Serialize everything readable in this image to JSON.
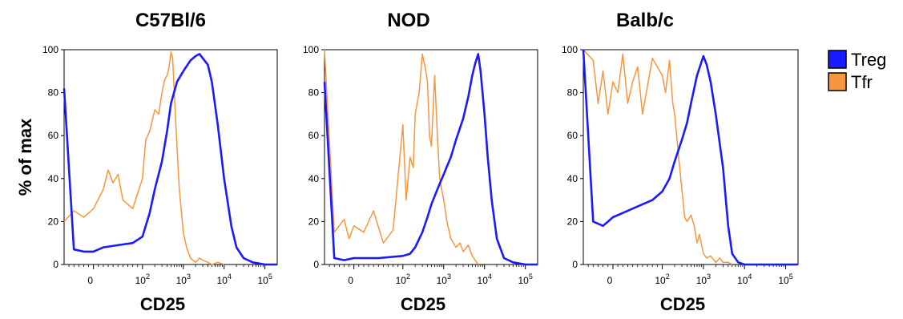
{
  "figure": {
    "ylabel": "% of max",
    "legend": {
      "placement": "right",
      "entries": [
        {
          "name": "Treg",
          "color": "#1a1aff"
        },
        {
          "name": "Tfr",
          "color": "#f7963c"
        }
      ]
    }
  },
  "chart_data": [
    {
      "type": "line",
      "title": "C57Bl/6",
      "xlabel": "CD25",
      "ylabel": "% of max",
      "x_scale": "biexponential",
      "xlim": [
        -60,
        200000
      ],
      "ylim": [
        0,
        100
      ],
      "x_ticks": [
        "0",
        "10^2",
        "10^3",
        "10^4",
        "10^5"
      ],
      "y_ticks": [
        "0",
        "20",
        "40",
        "60",
        "80",
        "100"
      ],
      "grid": false,
      "series": [
        {
          "name": "Treg",
          "color": "#1a1aff",
          "x": [
            -60,
            -40,
            -20,
            0,
            20,
            50,
            80,
            100,
            150,
            200,
            300,
            400,
            500,
            700,
            1000,
            1500,
            2000,
            2500,
            3000,
            4000,
            5000,
            7000,
            10000,
            15000,
            20000,
            30000,
            50000,
            100000,
            200000
          ],
          "y": [
            82,
            7,
            6,
            6,
            8,
            9,
            10,
            13,
            24,
            35,
            48,
            62,
            75,
            85,
            90,
            95,
            97,
            98,
            96,
            93,
            85,
            65,
            40,
            18,
            8,
            3,
            1,
            0,
            0
          ]
        },
        {
          "name": "Tfr",
          "color": "#f7963c",
          "x": [
            -60,
            -40,
            -20,
            0,
            20,
            30,
            40,
            50,
            60,
            80,
            100,
            120,
            150,
            200,
            250,
            300,
            350,
            400,
            450,
            500,
            550,
            600,
            700,
            800,
            1000,
            1200,
            1500,
            2000,
            2500,
            3000,
            4000,
            5000,
            7000,
            10000
          ],
          "y": [
            20,
            25,
            22,
            26,
            35,
            44,
            38,
            42,
            30,
            26,
            40,
            58,
            62,
            72,
            70,
            80,
            86,
            88,
            92,
            99,
            96,
            80,
            55,
            35,
            15,
            8,
            3,
            1,
            3,
            2,
            1,
            0,
            1,
            0
          ]
        }
      ]
    },
    {
      "type": "line",
      "title": "NOD",
      "xlabel": "CD25",
      "ylabel": "% of max",
      "x_scale": "biexponential",
      "xlim": [
        -60,
        200000
      ],
      "ylim": [
        0,
        100
      ],
      "x_ticks": [
        "0",
        "10^2",
        "10^3",
        "10^4",
        "10^5"
      ],
      "y_ticks": [
        "0",
        "20",
        "40",
        "60",
        "80",
        "100"
      ],
      "grid": false,
      "series": [
        {
          "name": "Treg",
          "color": "#1a1aff",
          "x": [
            -60,
            -40,
            -20,
            0,
            50,
            100,
            150,
            200,
            300,
            400,
            500,
            700,
            1000,
            1500,
            2000,
            3000,
            4000,
            5000,
            6000,
            7000,
            8000,
            10000,
            12000,
            15000,
            20000,
            30000,
            50000,
            100000,
            200000
          ],
          "y": [
            85,
            3,
            2,
            3,
            3,
            4,
            5,
            8,
            15,
            22,
            28,
            35,
            42,
            50,
            58,
            68,
            78,
            88,
            94,
            98,
            90,
            70,
            50,
            30,
            12,
            3,
            1,
            0,
            0
          ]
        },
        {
          "name": "Tfr",
          "color": "#f7963c",
          "x": [
            -60,
            -40,
            -20,
            -10,
            0,
            20,
            40,
            60,
            80,
            100,
            120,
            150,
            180,
            200,
            250,
            300,
            350,
            400,
            450,
            500,
            600,
            700,
            800,
            1000,
            1200,
            1500,
            2000,
            2500,
            3000,
            4000,
            5000,
            7000
          ],
          "y": [
            100,
            15,
            21,
            12,
            18,
            15,
            25,
            10,
            16,
            65,
            30,
            50,
            45,
            70,
            80,
            98,
            92,
            85,
            60,
            55,
            88,
            60,
            40,
            30,
            20,
            12,
            8,
            10,
            6,
            9,
            4,
            0
          ]
        }
      ]
    },
    {
      "type": "line",
      "title": "Balb/c",
      "xlabel": "CD25",
      "ylabel": "% of max",
      "x_scale": "biexponential",
      "xlim": [
        -60,
        200000
      ],
      "ylim": [
        0,
        100
      ],
      "x_ticks": [
        "0",
        "10^2",
        "10^3",
        "10^4",
        "10^5"
      ],
      "y_ticks": [
        "0",
        "20",
        "40",
        "60",
        "80",
        "100"
      ],
      "grid": false,
      "series": [
        {
          "name": "Treg",
          "color": "#1a1aff",
          "x": [
            -60,
            -40,
            -20,
            0,
            20,
            50,
            80,
            100,
            150,
            200,
            300,
            400,
            500,
            700,
            1000,
            1200,
            1500,
            2000,
            3000,
            4000,
            5000,
            7000,
            10000,
            15000,
            20000,
            50000,
            100000,
            200000
          ],
          "y": [
            100,
            20,
            18,
            22,
            24,
            27,
            30,
            34,
            40,
            48,
            58,
            66,
            75,
            88,
            97,
            93,
            85,
            70,
            45,
            18,
            5,
            1,
            0,
            0,
            0,
            0,
            0,
            0
          ]
        },
        {
          "name": "Tfr",
          "color": "#f7963c",
          "x": [
            -60,
            -40,
            -30,
            -20,
            -10,
            0,
            10,
            20,
            30,
            40,
            50,
            60,
            80,
            100,
            120,
            150,
            180,
            200,
            250,
            300,
            350,
            400,
            500,
            600,
            700,
            800,
            1000,
            1200,
            1500,
            2000,
            2500,
            3000,
            4000,
            5000
          ],
          "y": [
            100,
            95,
            75,
            90,
            70,
            85,
            80,
            98,
            75,
            85,
            92,
            70,
            96,
            88,
            80,
            95,
            75,
            70,
            50,
            35,
            22,
            20,
            23,
            18,
            10,
            14,
            5,
            3,
            4,
            1,
            3,
            1,
            1,
            0
          ]
        }
      ]
    }
  ]
}
